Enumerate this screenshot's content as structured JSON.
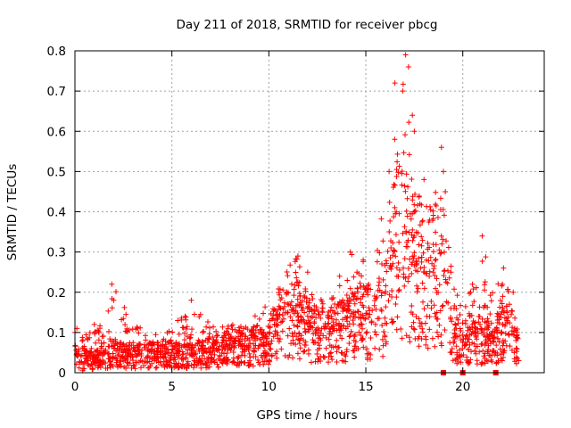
{
  "chart_data": {
    "type": "scatter",
    "title": "Day 211 of 2018, SRMTID for receiver pbcg",
    "xlabel": "GPS time / hours",
    "ylabel": "SRMTID / TECUs",
    "xlim": [
      0,
      24.2
    ],
    "ylim": [
      0,
      0.8
    ],
    "xticks": [
      0,
      5,
      10,
      15,
      20
    ],
    "xtick_labels": [
      "0",
      "5",
      "10",
      "15",
      "20"
    ],
    "yticks": [
      0,
      0.1,
      0.2,
      0.3,
      0.4,
      0.5,
      0.6,
      0.7,
      0.8
    ],
    "ytick_labels": [
      "0",
      "0.1",
      "0.2",
      "0.3",
      "0.4",
      "0.5",
      "0.6",
      "0.7",
      "0.8"
    ],
    "grid": true,
    "marker": "+",
    "color": "#ff0000",
    "series": [
      {
        "name": "SRMTID",
        "envelope_x": [
          0,
          1,
          2,
          3,
          4,
          5,
          6,
          7,
          8,
          9,
          10,
          10.5,
          11,
          11.5,
          12,
          13,
          14,
          14.5,
          15,
          15.5,
          16,
          16.3,
          16.6,
          17,
          17.3,
          17.6,
          18,
          18.5,
          19,
          19.5,
          20,
          20.5,
          21,
          21.5,
          22,
          22.5,
          22.9
        ],
        "envelope_median": [
          0.04,
          0.03,
          0.05,
          0.04,
          0.045,
          0.045,
          0.04,
          0.05,
          0.06,
          0.065,
          0.07,
          0.12,
          0.14,
          0.13,
          0.1,
          0.09,
          0.11,
          0.14,
          0.13,
          0.12,
          0.16,
          0.28,
          0.3,
          0.34,
          0.28,
          0.26,
          0.25,
          0.23,
          0.24,
          0.1,
          0.07,
          0.09,
          0.08,
          0.07,
          0.1,
          0.09,
          0.07
        ],
        "envelope_peak": [
          0.1,
          0.1,
          0.22,
          0.12,
          0.1,
          0.11,
          0.18,
          0.12,
          0.12,
          0.14,
          0.17,
          0.23,
          0.29,
          0.29,
          0.2,
          0.18,
          0.3,
          0.3,
          0.28,
          0.27,
          0.5,
          0.72,
          0.7,
          0.79,
          0.64,
          0.48,
          0.4,
          0.45,
          0.56,
          0.22,
          0.16,
          0.22,
          0.34,
          0.2,
          0.26,
          0.2,
          0.1
        ],
        "points_x": [
          0.0,
          0.1,
          0.4,
          1.0,
          1.9,
          2.0,
          6.0,
          11.5,
          12.0,
          14.2,
          16.2,
          16.5,
          16.9,
          17.05,
          17.2,
          17.4,
          17.5,
          18.0,
          18.9,
          19.0,
          19.1,
          20.5,
          21.0,
          22.1,
          22.6,
          22.8
        ],
        "points_y": [
          0.1,
          0.11,
          0.005,
          0.12,
          0.22,
          0.18,
          0.18,
          0.29,
          0.25,
          0.3,
          0.5,
          0.72,
          0.7,
          0.79,
          0.76,
          0.64,
          0.6,
          0.48,
          0.56,
          0.5,
          0.45,
          0.22,
          0.34,
          0.26,
          0.2,
          0.1
        ]
      },
      {
        "name": "flag markers",
        "marker": "square",
        "x": [
          19.0,
          20.0,
          21.7
        ],
        "y": [
          0,
          0,
          0
        ]
      }
    ]
  }
}
